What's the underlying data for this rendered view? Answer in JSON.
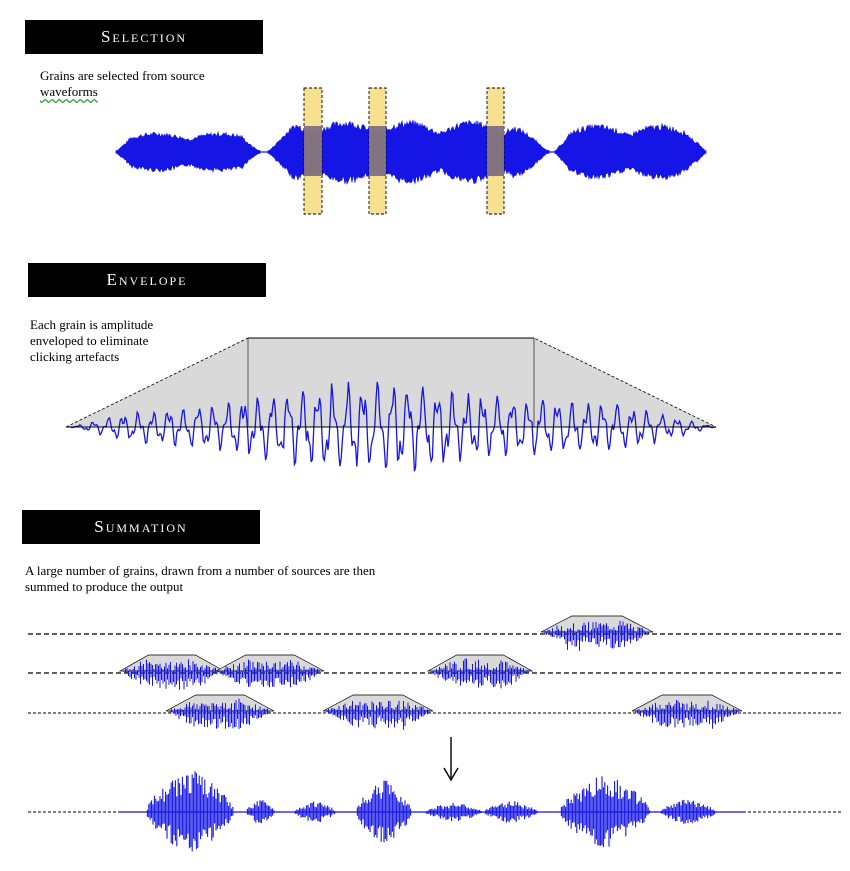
{
  "sections": {
    "selection": {
      "title": "Selection",
      "description_line1": "Grains are selected from source",
      "description_line2": "waveforms"
    },
    "envelope": {
      "title": "Envelope",
      "description_line1": "Each grain is amplitude",
      "description_line2": "enveloped to eliminate",
      "description_line3": "clicking artefacts"
    },
    "summation": {
      "title": "Summation",
      "description_line1": "A large number of grains, drawn from a number of sources are then",
      "description_line2": "summed to produce the output"
    }
  },
  "colors": {
    "waveform": "#1515e6",
    "grain_highlight": "#f7dc7a",
    "grain_overlap": "#7a6a80",
    "envelope_fill": "#d9d9d9",
    "header_bg": "#000000",
    "header_text": "#ffffff"
  }
}
